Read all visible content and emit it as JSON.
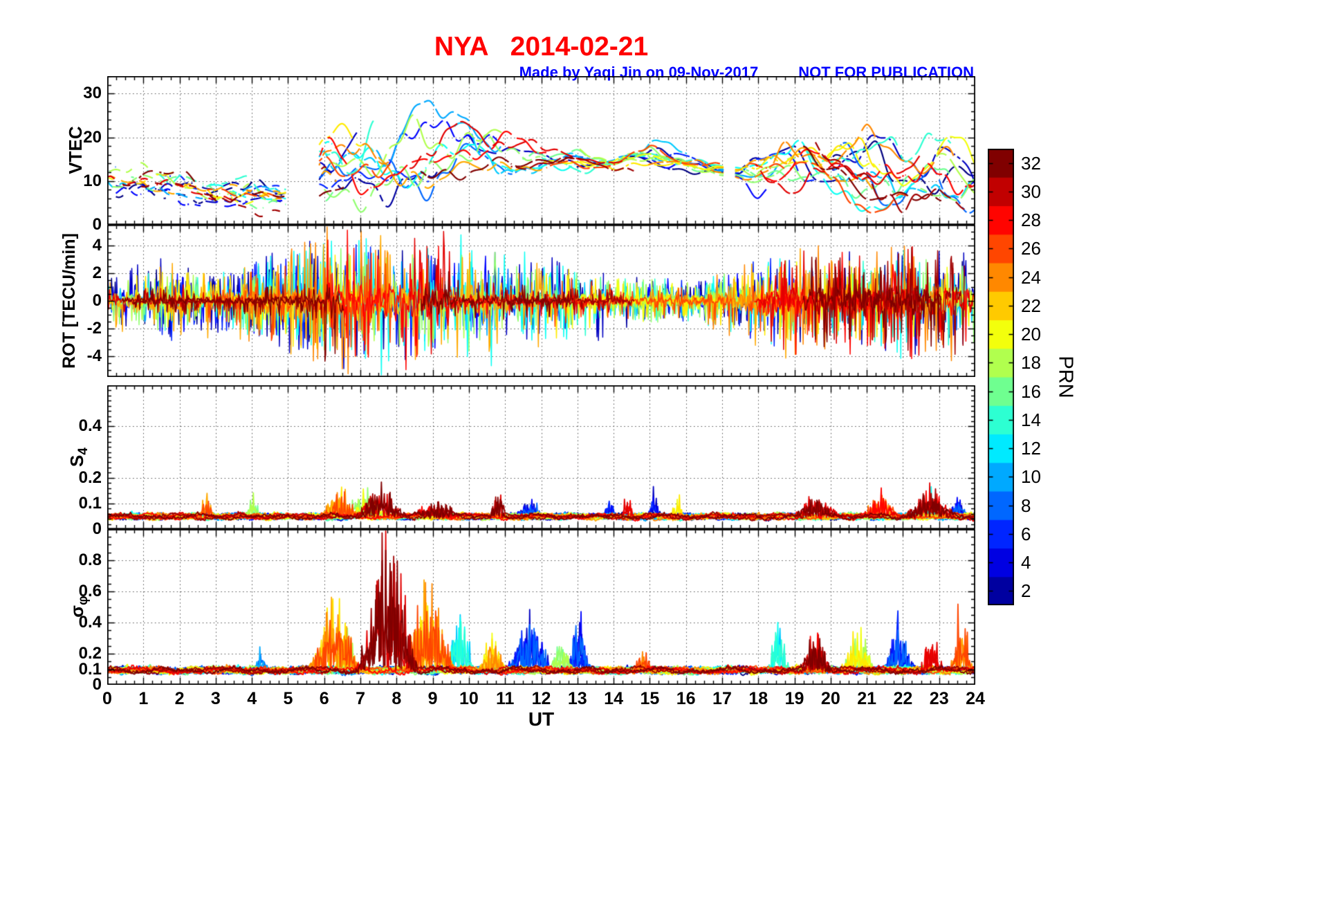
{
  "header": {
    "title": "NYA   2014-02-21",
    "credit": "Made by Yaqi Jin on 09-Nov-2017",
    "notice": "NOT FOR PUBLICATION",
    "title_color": "#ff0000",
    "credit_color": "#0000ff"
  },
  "axis": {
    "xlabel": "UT",
    "x_range": [
      0,
      24
    ],
    "x_ticks": [
      0,
      1,
      2,
      3,
      4,
      5,
      6,
      7,
      8,
      9,
      10,
      11,
      12,
      13,
      14,
      15,
      16,
      17,
      18,
      19,
      20,
      21,
      22,
      23,
      24
    ]
  },
  "colorbar": {
    "label": "PRN",
    "ticks": [
      2,
      4,
      6,
      8,
      10,
      12,
      14,
      16,
      18,
      20,
      22,
      24,
      26,
      28,
      30,
      32
    ],
    "range": [
      1,
      33
    ],
    "colormap": "jet",
    "n_colors": 16
  },
  "prn_list": [
    1,
    2,
    3,
    5,
    6,
    8,
    10,
    11,
    13,
    14,
    16,
    17,
    18,
    20,
    21,
    23,
    24,
    26,
    28,
    29,
    31,
    32
  ],
  "chart_data": [
    {
      "type": "line",
      "name": "VTEC",
      "ylabel": "VTEC",
      "ylabel_main": "VTEC",
      "ylabel_sub": "",
      "x_range": [
        0,
        24
      ],
      "ylim": [
        0,
        34
      ],
      "yticks": [
        0,
        10,
        20,
        30
      ],
      "yminor": 2,
      "grid": true,
      "description": "Vertical TEC vs UT, one dashed/solid trace per GPS PRN, colored by PRN (jet colormap)",
      "env_max": [
        15,
        15,
        15,
        11,
        13,
        9,
        24,
        27,
        30,
        28,
        30,
        24,
        19,
        18,
        16,
        21,
        17,
        15,
        19,
        24,
        21,
        23,
        21,
        23,
        16
      ],
      "env_min": [
        4,
        5,
        4,
        3,
        3,
        4,
        3,
        3,
        5,
        8,
        10,
        10,
        11,
        12,
        12,
        12,
        12,
        11,
        8,
        8,
        6,
        4,
        2,
        1,
        1
      ],
      "gaps": [
        [
          4.95,
          5.85
        ],
        [
          17.05,
          17.35
        ]
      ]
    },
    {
      "type": "line",
      "name": "ROT",
      "ylabel": "ROT [TECU/min]",
      "ylabel_main": "ROT [TECU/min]",
      "ylabel_sub": "",
      "x_range": [
        0,
        24
      ],
      "ylim": [
        -5.5,
        5.5
      ],
      "yticks": [
        -4,
        -2,
        0,
        2,
        4
      ],
      "yminor": 0.5,
      "grid": true,
      "description": "Rate of TEC change; dense spiky traces around 0, largest excursions ~05:30-10:30 UT and after 18:30 UT; high PRNs (red) hug zero",
      "amp_env": [
        2.5,
        3,
        3.5,
        2.5,
        3.5,
        4.5,
        5,
        5.5,
        5.5,
        5.5,
        5,
        4.5,
        3.5,
        3.5,
        2.5,
        2.5,
        2,
        2.5,
        3.5,
        4.5,
        3.5,
        4,
        4.5,
        4.5,
        4
      ]
    },
    {
      "type": "line",
      "name": "S4",
      "ylabel": "S4",
      "ylabel_main": "S",
      "ylabel_sub": "4",
      "x_range": [
        0,
        24
      ],
      "ylim": [
        0,
        0.56
      ],
      "yticks": [
        0,
        0.1,
        0.2,
        0.4
      ],
      "yminor": 0.02,
      "grid": true,
      "baseline": 0.05,
      "description": "Amplitude scintillation index; baseline ~0.05 with bursts up to ~0.15 near 07-08 UT",
      "events": [
        {
          "t": [
            2.5,
            3.0
          ],
          "peak": 0.13,
          "prn": [
            23,
            26
          ]
        },
        {
          "t": [
            3.8,
            4.3
          ],
          "peak": 0.09,
          "prn": [
            15,
            18
          ]
        },
        {
          "t": [
            5.8,
            7.0
          ],
          "peak": 0.12,
          "prn": [
            21,
            26
          ]
        },
        {
          "t": [
            6.5,
            7.8
          ],
          "peak": 0.13,
          "prn": [
            17,
            20
          ]
        },
        {
          "t": [
            6.8,
            8.3
          ],
          "peak": 0.15,
          "prn": [
            29,
            32
          ]
        },
        {
          "t": [
            8.3,
            9.9
          ],
          "peak": 0.07,
          "prn": [
            27,
            32
          ]
        },
        {
          "t": [
            10.5,
            11.1
          ],
          "peak": 0.12,
          "prn": [
            29,
            32
          ]
        },
        {
          "t": [
            11.2,
            12.2
          ],
          "peak": 0.07,
          "prn": [
            3,
            8
          ]
        },
        {
          "t": [
            13.7,
            14.1
          ],
          "peak": 0.11,
          "prn": [
            3,
            6
          ]
        },
        {
          "t": [
            14.2,
            14.6
          ],
          "peak": 0.13,
          "prn": [
            27,
            30
          ]
        },
        {
          "t": [
            14.9,
            15.3
          ],
          "peak": 0.11,
          "prn": [
            3,
            6
          ]
        },
        {
          "t": [
            15.5,
            16.0
          ],
          "peak": 0.1,
          "prn": [
            19,
            22
          ]
        },
        {
          "t": [
            18.9,
            20.3
          ],
          "peak": 0.1,
          "prn": [
            27,
            32
          ]
        },
        {
          "t": [
            20.8,
            22.0
          ],
          "peak": 0.11,
          "prn": [
            23,
            28
          ]
        },
        {
          "t": [
            21.9,
            23.6
          ],
          "peak": 0.12,
          "prn": [
            27,
            32
          ]
        },
        {
          "t": [
            22.5,
            23.0
          ],
          "peak": 0.12,
          "prn": [
            11,
            14
          ]
        },
        {
          "t": [
            23.2,
            23.8
          ],
          "peak": 0.1,
          "prn": [
            3,
            8
          ]
        }
      ]
    },
    {
      "type": "line",
      "name": "sigma_phi",
      "ylabel": "σφ",
      "ylabel_main": "σ",
      "ylabel_sub": "φ",
      "x_range": [
        0,
        24
      ],
      "ylim": [
        0,
        1.0
      ],
      "yticks": [
        0,
        0.1,
        0.2,
        0.4,
        0.6,
        0.8
      ],
      "yminor": 0.05,
      "grid": true,
      "baseline": 0.1,
      "description": "Phase scintillation index; baseline ~0.1, strong event 07-08.5 UT reaching ~0.95 on high PRNs (dark red), orange PRNs to ~0.6, later blue/cyan events 0.3-0.45",
      "events": [
        {
          "t": [
            4.0,
            4.5
          ],
          "peak": 0.18,
          "prn": [
            7,
            10
          ]
        },
        {
          "t": [
            5.5,
            7.1
          ],
          "peak": 0.6,
          "prn": [
            21,
            26
          ]
        },
        {
          "t": [
            6.2,
            7.0
          ],
          "peak": 0.35,
          "prn": [
            17,
            20
          ]
        },
        {
          "t": [
            6.8,
            8.7
          ],
          "peak": 0.97,
          "prn": [
            29,
            32
          ]
        },
        {
          "t": [
            8.1,
            9.7
          ],
          "peak": 0.62,
          "prn": [
            21,
            26
          ]
        },
        {
          "t": [
            9.3,
            10.2
          ],
          "peak": 0.45,
          "prn": [
            11,
            14
          ]
        },
        {
          "t": [
            10.2,
            11.1
          ],
          "peak": 0.22,
          "prn": [
            19,
            24
          ]
        },
        {
          "t": [
            11.0,
            12.4
          ],
          "peak": 0.42,
          "prn": [
            3,
            8
          ]
        },
        {
          "t": [
            12.2,
            12.9
          ],
          "peak": 0.25,
          "prn": [
            15,
            18
          ]
        },
        {
          "t": [
            12.7,
            13.4
          ],
          "peak": 0.42,
          "prn": [
            3,
            8
          ]
        },
        {
          "t": [
            14.5,
            15.1
          ],
          "peak": 0.15,
          "prn": [
            23,
            26
          ]
        },
        {
          "t": [
            18.2,
            18.9
          ],
          "peak": 0.47,
          "prn": [
            11,
            14
          ]
        },
        {
          "t": [
            19.1,
            20.1
          ],
          "peak": 0.3,
          "prn": [
            27,
            32
          ]
        },
        {
          "t": [
            20.2,
            21.3
          ],
          "peak": 0.3,
          "prn": [
            17,
            22
          ]
        },
        {
          "t": [
            21.4,
            22.4
          ],
          "peak": 0.33,
          "prn": [
            3,
            8
          ]
        },
        {
          "t": [
            22.4,
            23.2
          ],
          "peak": 0.3,
          "prn": [
            27,
            30
          ]
        },
        {
          "t": [
            23.2,
            24.0
          ],
          "peak": 0.42,
          "prn": [
            23,
            26
          ]
        }
      ]
    }
  ]
}
